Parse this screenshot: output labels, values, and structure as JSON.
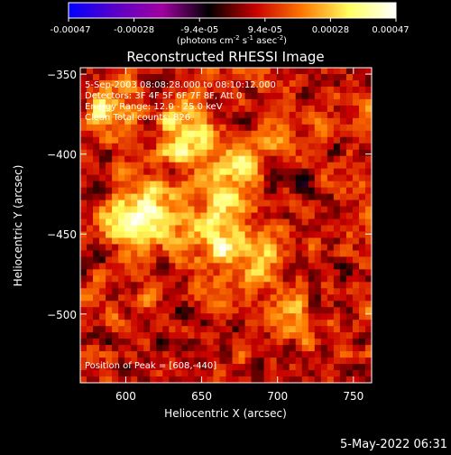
{
  "colorbar": {
    "ticks": [
      "-0.00047",
      "-0.00028",
      "-9.4e-05",
      "9.4e-05",
      "0.00028",
      "0.00047"
    ],
    "units_prefix": "(photons cm",
    "units_sup1": "-2",
    "units_mid": " s",
    "units_sup2": "-1",
    "units_mid2": " asec",
    "units_sup3": "-2",
    "units_suffix": ")",
    "colors": [
      "#0000ff",
      "#5a00c8",
      "#a000a0",
      "#000000",
      "#c80000",
      "#ff7800",
      "#ffff60",
      "#ffffff"
    ]
  },
  "chart_data": {
    "type": "heatmap",
    "title": "Reconstructed RHESSI Image",
    "xlabel": "Heliocentric X (arcsec)",
    "ylabel": "Heliocentric Y (arcsec)",
    "xlim": [
      570,
      762
    ],
    "ylim": [
      -543,
      -346
    ],
    "xticks": [
      600,
      650,
      700,
      750
    ],
    "yticks": [
      -350,
      -400,
      -450,
      -500
    ],
    "annotations": [
      "5-Sep-2003 08:08:28.000 to 08:10:12.000",
      "Detectors: 3F 4F 5F 6F 7F 8F, Att 0",
      "Energy Range: 12.0 - 25.0 keV",
      "Clean     Total counts: 826."
    ],
    "peak_label": "Position of Peak = [608,-440]",
    "peak": [
      608,
      -440
    ],
    "grid": false
  },
  "footer": {
    "timestamp": "5-May-2022 06:31"
  }
}
